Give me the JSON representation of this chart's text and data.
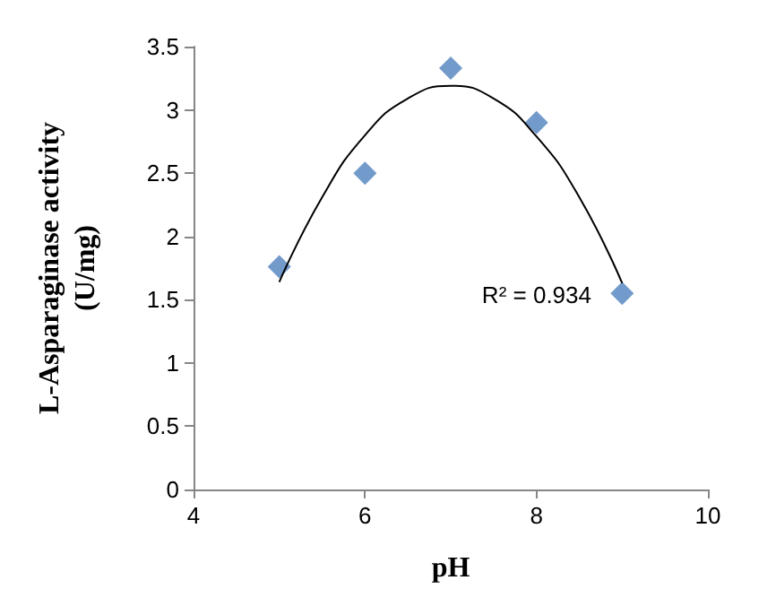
{
  "chart_data": {
    "type": "scatter",
    "xlabel": "pH",
    "ylabel": "L-Asparaginase activity\n(U/mg)",
    "series": [
      {
        "color": "#4f81bd",
        "marker": "diamond",
        "x": [
          5,
          6,
          7,
          8,
          9
        ],
        "values": [
          1.76,
          2.5,
          3.33,
          2.9,
          1.55
        ]
      },
      {
        "type": "line",
        "color": "#000000",
        "marker": "none",
        "line_style": "solid",
        "x": [
          5,
          5.5,
          6,
          6.5,
          7,
          7.5,
          8,
          8.5,
          9
        ],
        "values": [
          1.64,
          2.31,
          2.8,
          3.09,
          3.19,
          3.09,
          2.79,
          2.31,
          1.63
        ]
      }
    ],
    "xlim": [
      4,
      10
    ],
    "xticks": [
      4,
      6,
      8,
      10
    ],
    "ylim": [
      0,
      3.5
    ],
    "yticks": [
      0,
      0.5,
      1,
      1.5,
      2,
      2.5,
      3,
      3.5
    ],
    "grid": false,
    "annotations": [
      "R² = 0.934"
    ]
  }
}
